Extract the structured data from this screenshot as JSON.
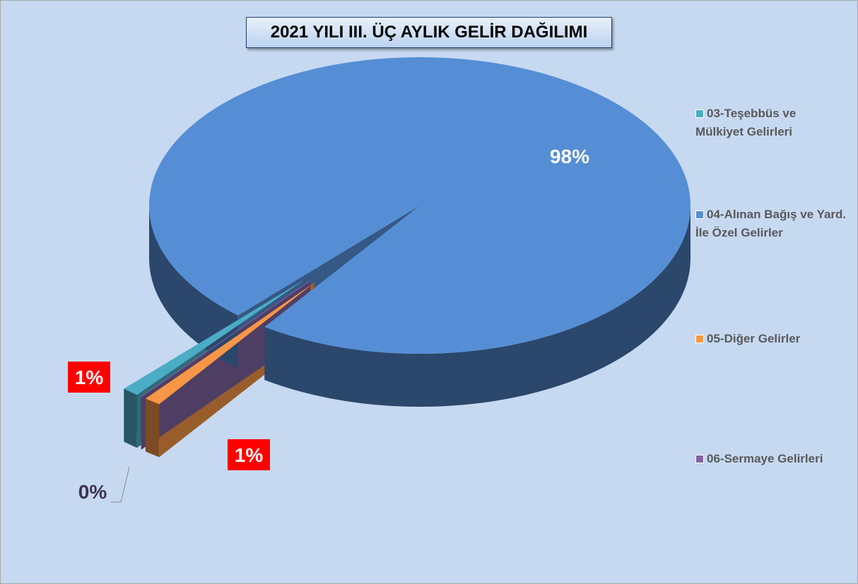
{
  "chart_data": {
    "type": "pie3d",
    "title": "2021 YILI III. ÜÇ AYLIK GELİR DAĞILIMI",
    "categories": [
      "03-Teşebbüs ve Mülkiyet Gelirleri",
      "04-Alınan Bağış ve Yard. İle Özel Gelirler",
      "05-Diğer Gelirler",
      "06-Sermaye Gelirleri"
    ],
    "values": [
      1,
      98,
      1,
      0
    ],
    "value_labels": [
      "1%",
      "98%",
      "1%",
      "0%"
    ],
    "colors": [
      "#4bacc6",
      "#558ed5",
      "#f79646",
      "#8064a2"
    ],
    "legend": "right"
  }
}
